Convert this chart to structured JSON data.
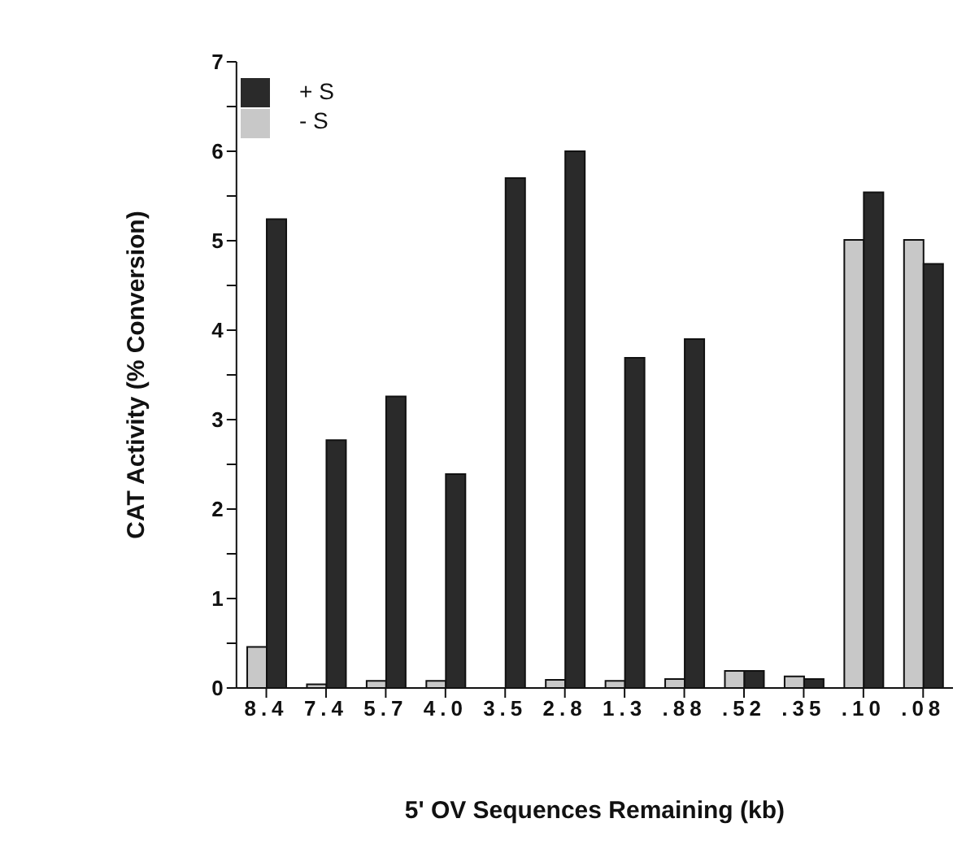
{
  "chart_data": {
    "type": "bar",
    "xlabel": "5' OV Sequences Remaining (kb)",
    "ylabel": "CAT Activity (% Conversion)",
    "categories": [
      "8.4",
      "7.4",
      "5.7",
      "4.0",
      "3.5",
      "2.8",
      "1.3",
      ".88",
      ".52",
      ".35",
      ".10",
      ".08"
    ],
    "series": [
      {
        "name": "- S",
        "color": "#c8c8c8",
        "values": [
          0.46,
          0.04,
          0.08,
          0.08,
          0,
          0.09,
          0.08,
          0.1,
          0.19,
          0.13,
          5.01,
          5.01
        ]
      },
      {
        "name": "+ S",
        "color": "#2a2a2a",
        "values": [
          5.24,
          2.77,
          3.26,
          2.39,
          5.7,
          6.0,
          3.69,
          3.9,
          0.19,
          0.1,
          5.54,
          4.74
        ]
      }
    ],
    "ylim": [
      0,
      7
    ],
    "yticks": [
      0,
      {
        "value": 0.5,
        "label": null
      },
      1,
      {
        "value": 1.5,
        "label": null
      },
      2,
      {
        "value": 2.5,
        "label": null
      },
      3,
      {
        "value": 3.5,
        "label": null
      },
      4,
      {
        "value": 4.5,
        "label": null
      },
      5,
      {
        "value": 5.5,
        "label": null
      },
      6,
      {
        "value": 6.5,
        "label": null
      },
      7
    ],
    "grid": false,
    "legend": "top left"
  }
}
